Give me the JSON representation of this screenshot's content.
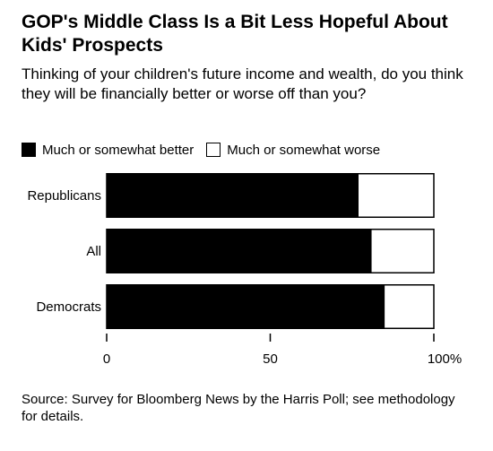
{
  "header": {
    "title": "GOP's Middle Class Is a Bit Less Hopeful About Kids' Prospects",
    "subtitle": "Thinking of your children's future income and wealth, do you think they will be financially better or worse off than you?"
  },
  "legend": {
    "better_label": "Much or somewhat better",
    "worse_label": "Much or somewhat worse"
  },
  "colors": {
    "better": "#000000",
    "worse": "#ffffff",
    "outline": "#000000"
  },
  "chart_data": {
    "type": "bar",
    "orientation": "horizontal",
    "stacked": true,
    "categories": [
      "Republicans",
      "All",
      "Democrats"
    ],
    "series": [
      {
        "name": "Much or somewhat better",
        "values": [
          77,
          81,
          85
        ]
      },
      {
        "name": "Much or somewhat worse",
        "values": [
          23,
          19,
          15
        ]
      }
    ],
    "xlim": [
      0,
      100
    ],
    "xticks": [
      0,
      50,
      100
    ],
    "xtick_labels": [
      "0",
      "50",
      "100%"
    ],
    "grid": false,
    "legend_position": "top-left"
  },
  "footer": {
    "source": "Source: Survey for Bloomberg News by the Harris Poll; see methodology for details."
  }
}
